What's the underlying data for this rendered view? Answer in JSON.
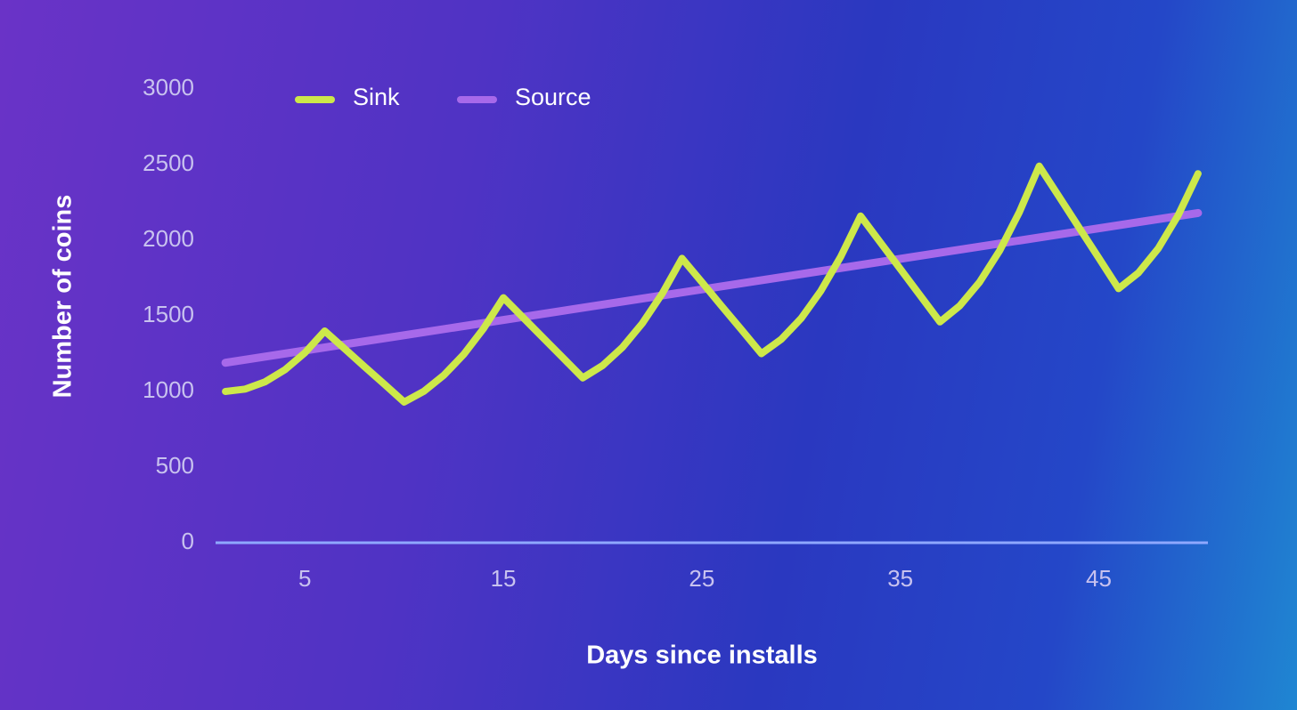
{
  "chart_data": {
    "type": "line",
    "x_label": "Days since installs",
    "y_label": "Number of coins",
    "xlim": [
      0.5,
      50.5
    ],
    "xticks": [
      5,
      15,
      25,
      35,
      45
    ],
    "ylim": [
      0,
      3000
    ],
    "yticks": [
      0,
      500,
      1000,
      1500,
      2000,
      2500,
      3000
    ],
    "series": [
      {
        "name": "Sink",
        "color": "#cde84a",
        "x": [
          1,
          2,
          3,
          4,
          5,
          6,
          7,
          8,
          9,
          10,
          11,
          12,
          13,
          14,
          15,
          16,
          17,
          18,
          19,
          20,
          21,
          22,
          23,
          24,
          25,
          26,
          27,
          28,
          29,
          30,
          31,
          32,
          33,
          34,
          35,
          36,
          37,
          38,
          39,
          40,
          41,
          42,
          43,
          44,
          45,
          46,
          47,
          48,
          49,
          50
        ],
        "values": [
          1000,
          1016,
          1064,
          1144,
          1256,
          1400,
          1283,
          1165,
          1048,
          930,
          1002,
          1107,
          1245,
          1416,
          1620,
          1488,
          1355,
          1223,
          1090,
          1172,
          1292,
          1450,
          1646,
          1880,
          1723,
          1565,
          1408,
          1250,
          1345,
          1483,
          1665,
          1891,
          2160,
          1985,
          1810,
          1635,
          1460,
          1567,
          1724,
          1930,
          2185,
          2490,
          2288,
          2085,
          1883,
          1680,
          1785,
          1946,
          2165,
          2440
        ]
      },
      {
        "name": "Source",
        "color": "#a769ea",
        "x": [
          1,
          50
        ],
        "values": [
          1190,
          2180
        ]
      }
    ]
  }
}
